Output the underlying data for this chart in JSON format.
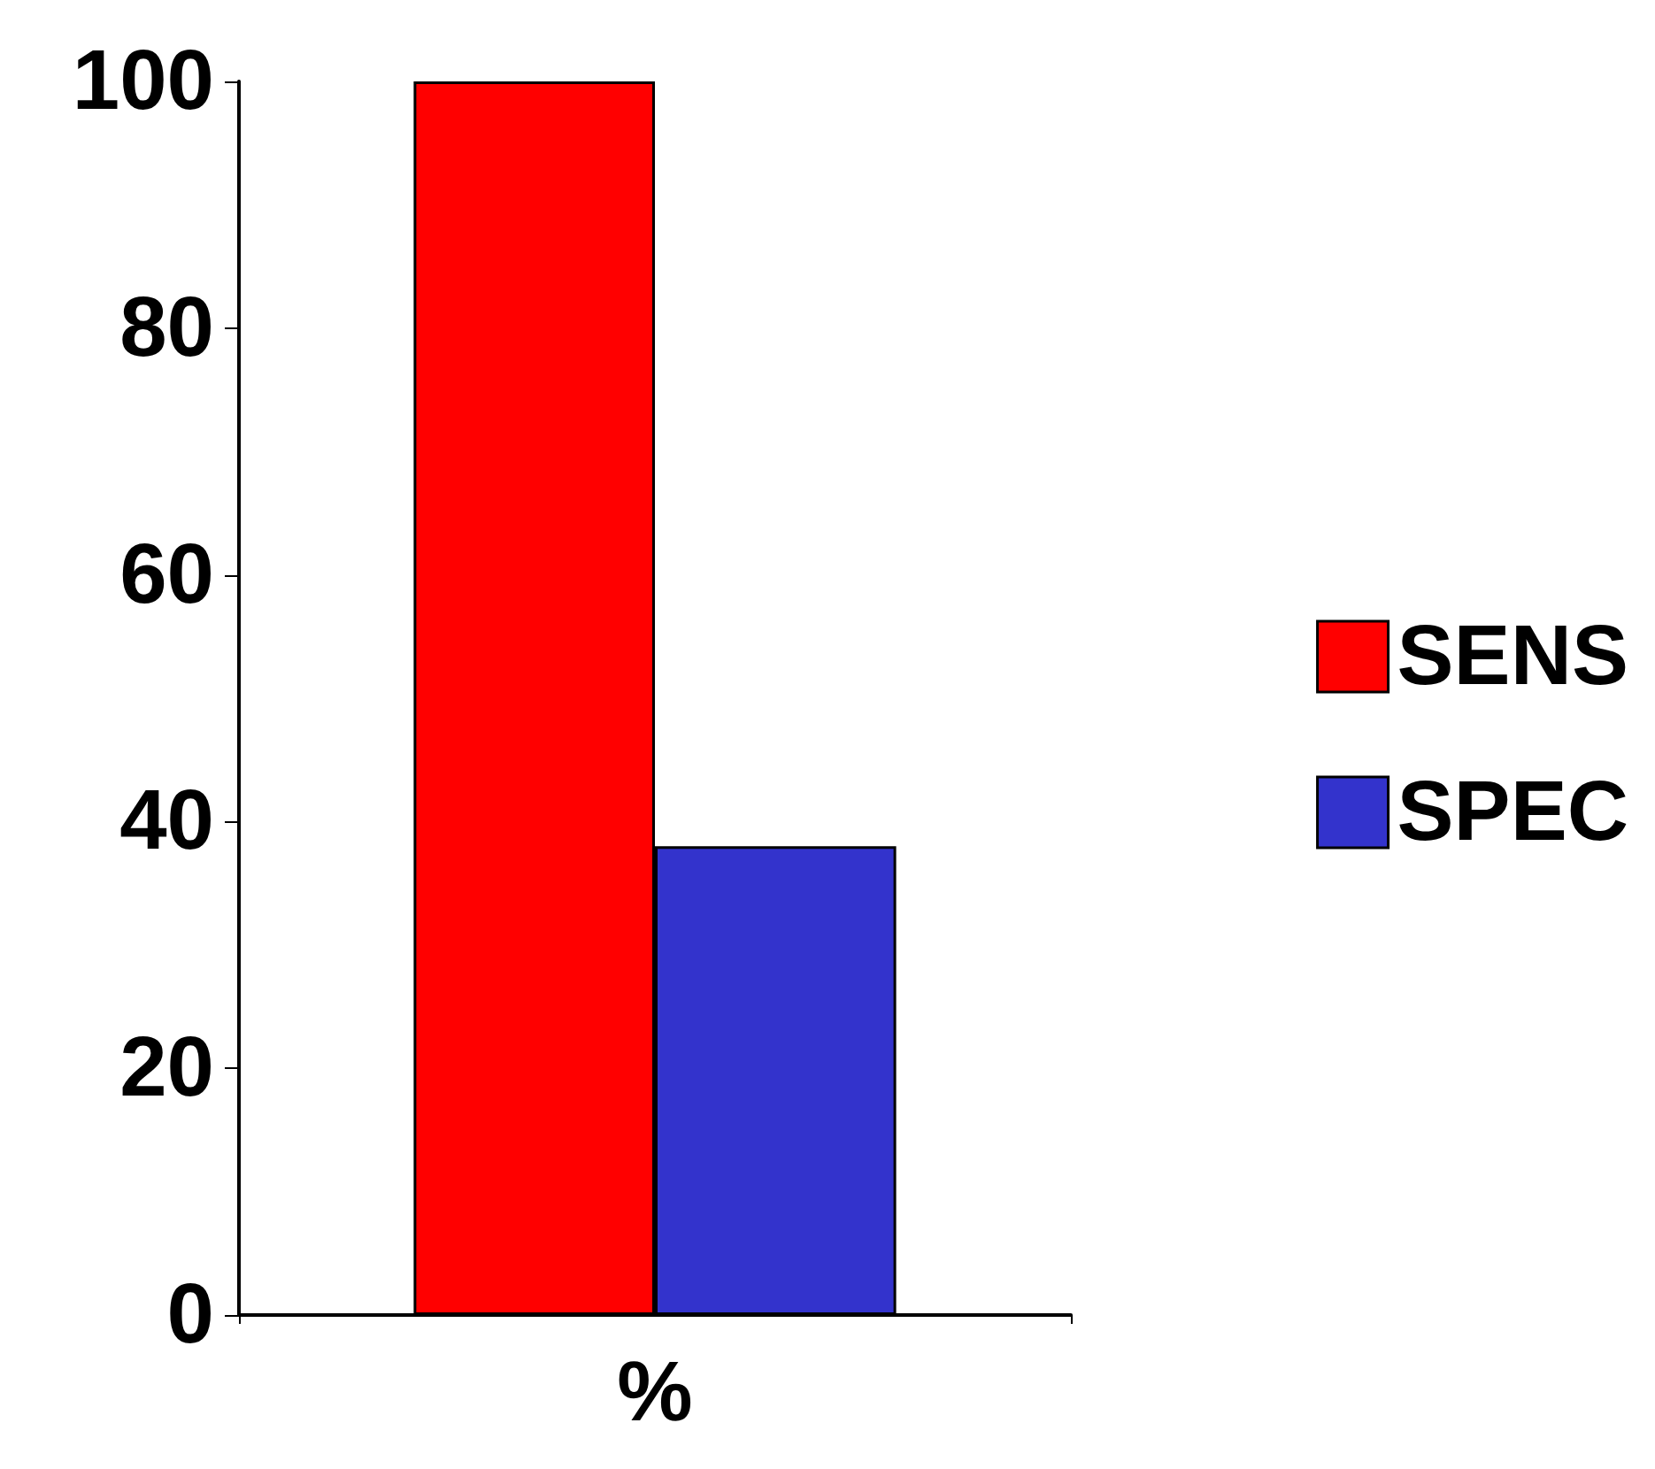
{
  "chart_data": {
    "type": "bar",
    "categories": [
      "%"
    ],
    "series": [
      {
        "name": "SENS",
        "color": "#ff0000",
        "values": [
          100
        ]
      },
      {
        "name": "SPEC",
        "color": "#3333cc",
        "values": [
          38
        ]
      }
    ],
    "ylim": [
      0,
      100
    ],
    "yticks": [
      0,
      20,
      40,
      60,
      80,
      100
    ],
    "grid": false,
    "legend": "right"
  }
}
